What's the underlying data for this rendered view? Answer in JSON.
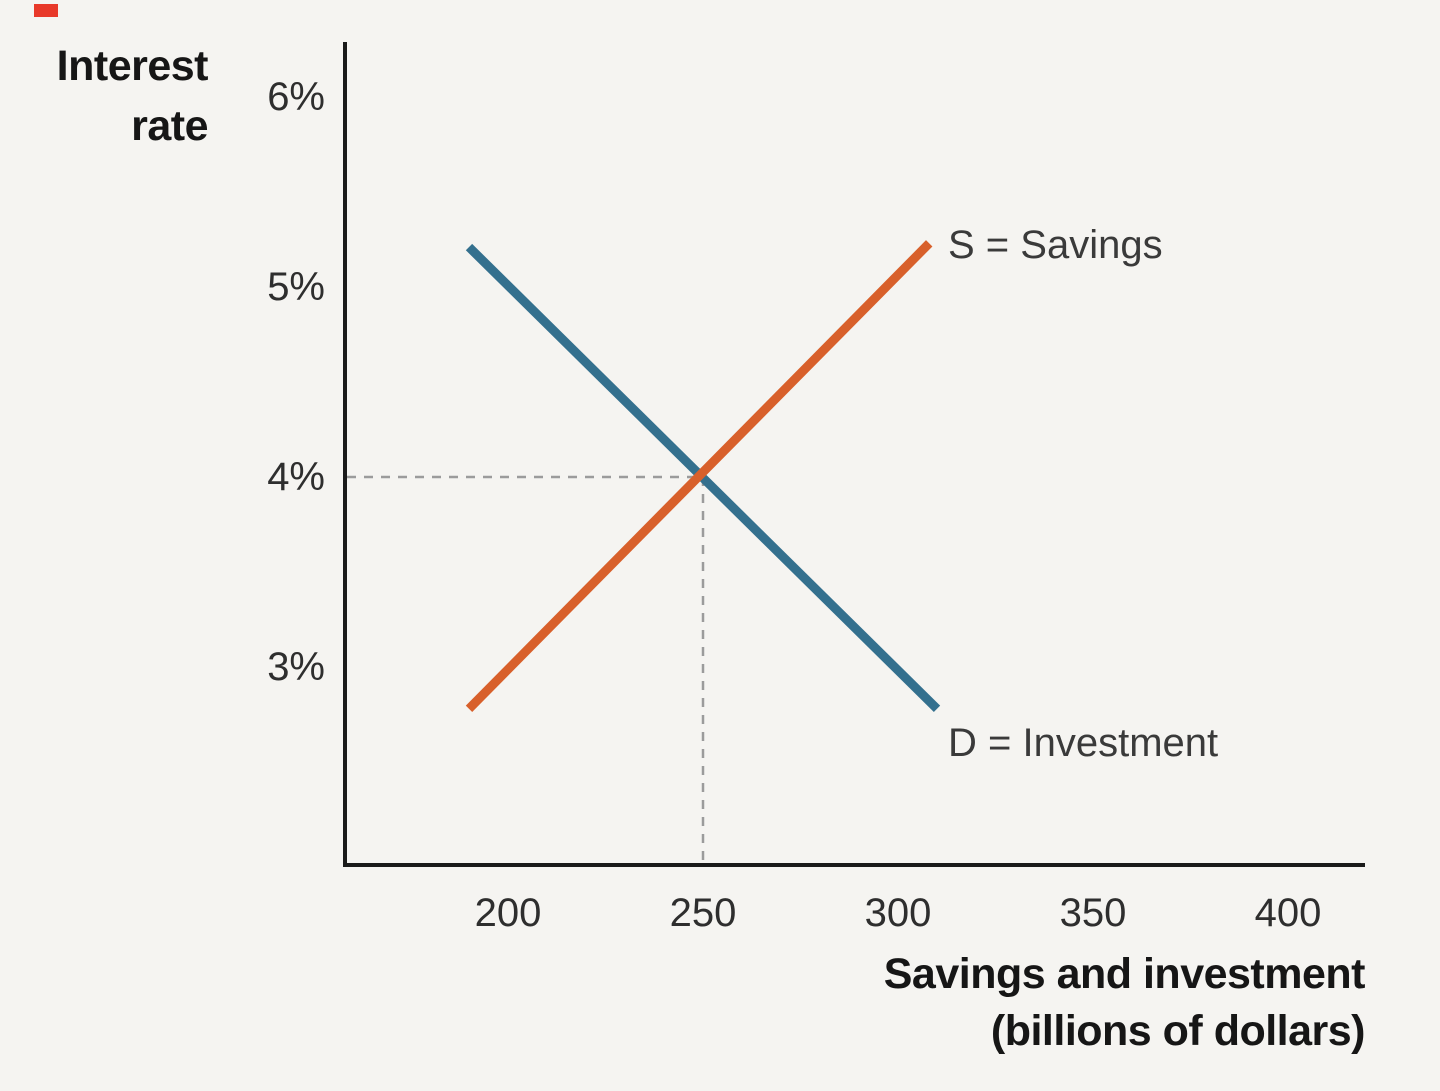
{
  "chart_data": {
    "type": "line",
    "title": "",
    "xlabel": "Savings and investment (billions of dollars)",
    "ylabel": "Interest rate",
    "xlabel_lines": [
      "Savings and investment",
      "(billions of dollars)"
    ],
    "ylabel_lines": [
      "Interest",
      "rate"
    ],
    "xticks": [
      "200",
      "250",
      "300",
      "350",
      "400"
    ],
    "xtick_values": [
      200,
      250,
      300,
      350,
      400
    ],
    "yticks": [
      "6%",
      "5%",
      "4%",
      "3%"
    ],
    "ytick_values": [
      6,
      5,
      4,
      3
    ],
    "xlim": [
      160,
      420
    ],
    "ylim": [
      2.2,
      6.3
    ],
    "grid": false,
    "legend": "inline-labels",
    "axis_color": "#1a1a1a",
    "guide_color": "#9b9b9b",
    "series": [
      {
        "name": "S = Savings",
        "color": "#d8602b",
        "points": [
          [
            190,
            2.78
          ],
          [
            308,
            5.23
          ]
        ]
      },
      {
        "name": "D = Investment",
        "color": "#34708e",
        "points": [
          [
            190,
            5.21
          ],
          [
            310,
            2.78
          ]
        ]
      }
    ],
    "equilibrium": {
      "x": 250,
      "y": 4
    }
  }
}
